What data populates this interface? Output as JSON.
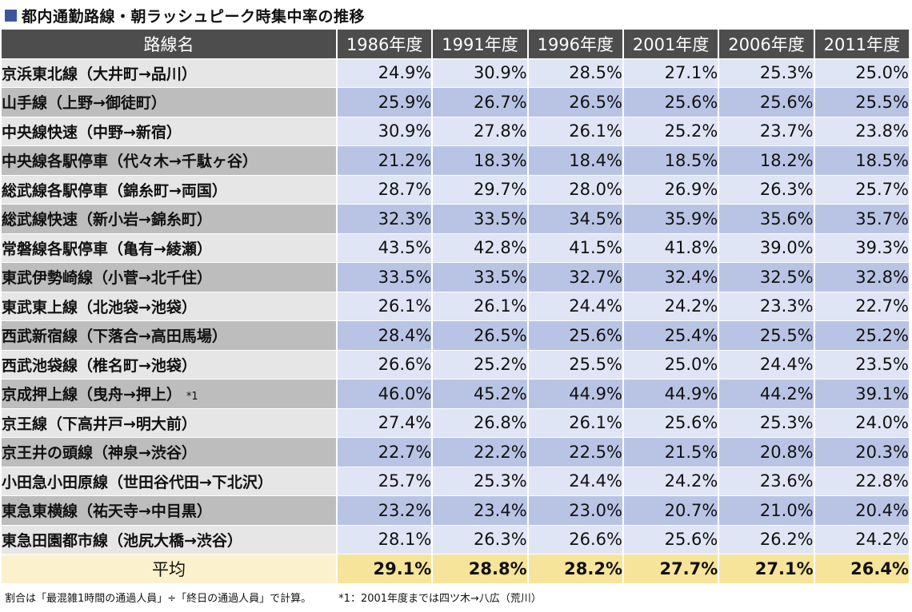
{
  "title": "都内通勤路線・朝ラッシュピーク時集中率の推移",
  "colors": {
    "title_square": "#3a55a0",
    "header_bg": "#4d4d4d",
    "value_light": "#e0e5f5",
    "value_dark": "#b9c4e5",
    "average_bg": "#f5e49a"
  },
  "chart_data": {
    "type": "table",
    "title": "都内通勤路線・朝ラッシュピーク時集中率の推移",
    "columns": [
      "路線名",
      "1986年度",
      "1991年度",
      "1996年度",
      "2001年度",
      "2006年度",
      "2011年度"
    ],
    "rows": [
      {
        "name": "京浜東北線（大井町→品川）",
        "note": "",
        "values": [
          "24.9%",
          "30.9%",
          "28.5%",
          "27.1%",
          "25.3%",
          "25.0%"
        ]
      },
      {
        "name": "山手線（上野→御徒町）",
        "note": "",
        "values": [
          "25.9%",
          "26.7%",
          "26.5%",
          "25.6%",
          "25.6%",
          "25.5%"
        ]
      },
      {
        "name": "中央線快速（中野→新宿）",
        "note": "",
        "values": [
          "30.9%",
          "27.8%",
          "26.1%",
          "25.2%",
          "23.7%",
          "23.8%"
        ]
      },
      {
        "name": "中央線各駅停車（代々木→千駄ヶ谷）",
        "note": "",
        "values": [
          "21.2%",
          "18.3%",
          "18.4%",
          "18.5%",
          "18.2%",
          "18.5%"
        ]
      },
      {
        "name": "総武線各駅停車（錦糸町→両国）",
        "note": "",
        "values": [
          "28.7%",
          "29.7%",
          "28.0%",
          "26.9%",
          "26.3%",
          "25.7%"
        ]
      },
      {
        "name": "総武線快速（新小岩→錦糸町）",
        "note": "",
        "values": [
          "32.3%",
          "33.5%",
          "34.5%",
          "35.9%",
          "35.6%",
          "35.7%"
        ]
      },
      {
        "name": "常磐線各駅停車（亀有→綾瀬）",
        "note": "",
        "values": [
          "43.5%",
          "42.8%",
          "41.5%",
          "41.8%",
          "39.0%",
          "39.3%"
        ]
      },
      {
        "name": "東武伊勢崎線（小菅→北千住）",
        "note": "",
        "values": [
          "33.5%",
          "33.5%",
          "32.7%",
          "32.4%",
          "32.5%",
          "32.8%"
        ]
      },
      {
        "name": "東武東上線（北池袋→池袋）",
        "note": "",
        "values": [
          "26.1%",
          "26.1%",
          "24.4%",
          "24.2%",
          "23.3%",
          "22.7%"
        ]
      },
      {
        "name": "西武新宿線（下落合→高田馬場）",
        "note": "",
        "values": [
          "28.4%",
          "26.5%",
          "25.6%",
          "25.4%",
          "25.5%",
          "25.2%"
        ]
      },
      {
        "name": "西武池袋線（椎名町→池袋）",
        "note": "",
        "values": [
          "26.6%",
          "25.2%",
          "25.5%",
          "25.0%",
          "24.4%",
          "23.5%"
        ]
      },
      {
        "name": "京成押上線（曳舟→押上）",
        "note": "*1",
        "values": [
          "46.0%",
          "45.2%",
          "44.9%",
          "44.9%",
          "44.2%",
          "39.1%"
        ]
      },
      {
        "name": "京王線（下高井戸→明大前）",
        "note": "",
        "values": [
          "27.4%",
          "26.8%",
          "26.1%",
          "25.6%",
          "25.3%",
          "24.0%"
        ]
      },
      {
        "name": "京王井の頭線（神泉→渋谷）",
        "note": "",
        "values": [
          "22.7%",
          "22.2%",
          "22.5%",
          "21.5%",
          "20.8%",
          "20.3%"
        ]
      },
      {
        "name": "小田急小田原線（世田谷代田→下北沢）",
        "note": "",
        "values": [
          "25.7%",
          "25.3%",
          "24.4%",
          "24.2%",
          "23.6%",
          "22.8%"
        ]
      },
      {
        "name": "東急東横線（祐天寺→中目黒）",
        "note": "",
        "values": [
          "23.2%",
          "23.4%",
          "23.0%",
          "20.7%",
          "21.0%",
          "20.4%"
        ]
      },
      {
        "name": "東急田園都市線（池尻大橋→渋谷）",
        "note": "",
        "values": [
          "28.1%",
          "26.3%",
          "26.6%",
          "25.6%",
          "26.2%",
          "24.2%"
        ]
      }
    ],
    "average": {
      "label": "平均",
      "values": [
        "29.1%",
        "28.8%",
        "28.2%",
        "27.7%",
        "27.1%",
        "26.4%"
      ]
    }
  },
  "footer": {
    "left": "割合は「最混雑1時間の通過人員」÷「終日の通過人員」で計算。",
    "right": "*1：2001年度までは四ツ木→八広（荒川）"
  }
}
